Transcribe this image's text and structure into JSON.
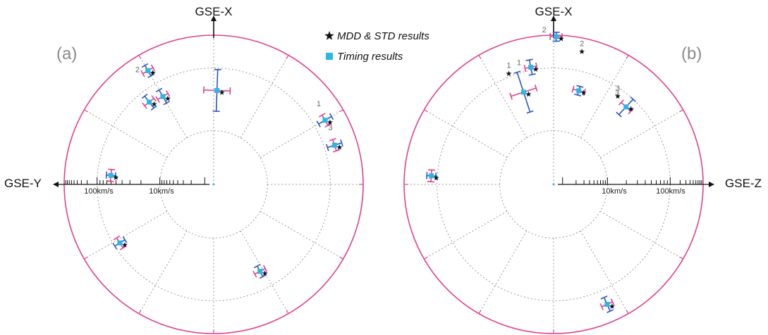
{
  "legend": {
    "items": [
      {
        "label": "MDD & STD results",
        "marker": "star",
        "color": "#111111"
      },
      {
        "label": "Timing results",
        "marker": "square",
        "color": "#29b6e8"
      }
    ]
  },
  "colors": {
    "outer_ring": "#e0408f",
    "grid": "#999999",
    "mdd_errorbar": "#e0408f",
    "timing_errorbar": "#2a55c8",
    "timing_marker": "#29b6e8",
    "star": "#111111"
  },
  "chart_data": [
    {
      "type": "scatter",
      "panel_label": "(a)",
      "up_axis_label": "GSE-X",
      "side_axis_label": "GSE-Y",
      "side_axis_direction": "left",
      "scale": "log-radial",
      "scale_ticks": [
        "100km/s",
        "10km/s"
      ],
      "points": [
        {
          "label": "",
          "r": 0.63,
          "theta": 92,
          "err": 0.14
        },
        {
          "label": "",
          "r": 0.68,
          "theta": 60,
          "err": 0.05
        },
        {
          "label": "",
          "r": 0.7,
          "theta": 52,
          "err": 0.05
        },
        {
          "label": "2",
          "r": 0.88,
          "theta": 60,
          "err": 0.04
        },
        {
          "label": "1",
          "r": 0.86,
          "theta": 150,
          "err": 0.05
        },
        {
          "label": "3",
          "r": 0.85,
          "theta": 162,
          "err": 0.05
        },
        {
          "label": "",
          "r": 0.69,
          "theta": 5,
          "err": 0.03
        },
        {
          "label": "",
          "r": 0.74,
          "theta": -32,
          "err": 0.04
        },
        {
          "label": "",
          "r": 0.66,
          "theta": -118,
          "err": 0.04
        }
      ]
    },
    {
      "type": "scatter",
      "panel_label": "(b)",
      "up_axis_label": "GSE-X",
      "side_axis_label": "GSE-Z",
      "side_axis_direction": "right",
      "scale": "log-radial",
      "scale_ticks": [
        "10km/s",
        "100km/s"
      ],
      "labeled_stars": [
        {
          "label": "1",
          "r": 0.8,
          "theta": 112
        },
        {
          "label": "2",
          "r": 0.91,
          "theta": 78
        },
        {
          "label": "3",
          "r": 0.73,
          "theta": 54
        }
      ],
      "points": [
        {
          "label": "2",
          "r": 0.99,
          "theta": 89,
          "err": 0.03
        },
        {
          "label": "1",
          "r": 0.8,
          "theta": 101,
          "err": 0.05
        },
        {
          "label": "",
          "r": 0.65,
          "theta": 108,
          "err": 0.14
        },
        {
          "label": "",
          "r": 0.65,
          "theta": 75,
          "err": 0.03
        },
        {
          "label": "3",
          "r": 0.71,
          "theta": 47,
          "err": 0.07
        },
        {
          "label": "",
          "r": 0.82,
          "theta": 176,
          "err": 0.03
        },
        {
          "label": "",
          "r": 0.88,
          "theta": -66,
          "err": 0.05
        }
      ]
    }
  ]
}
